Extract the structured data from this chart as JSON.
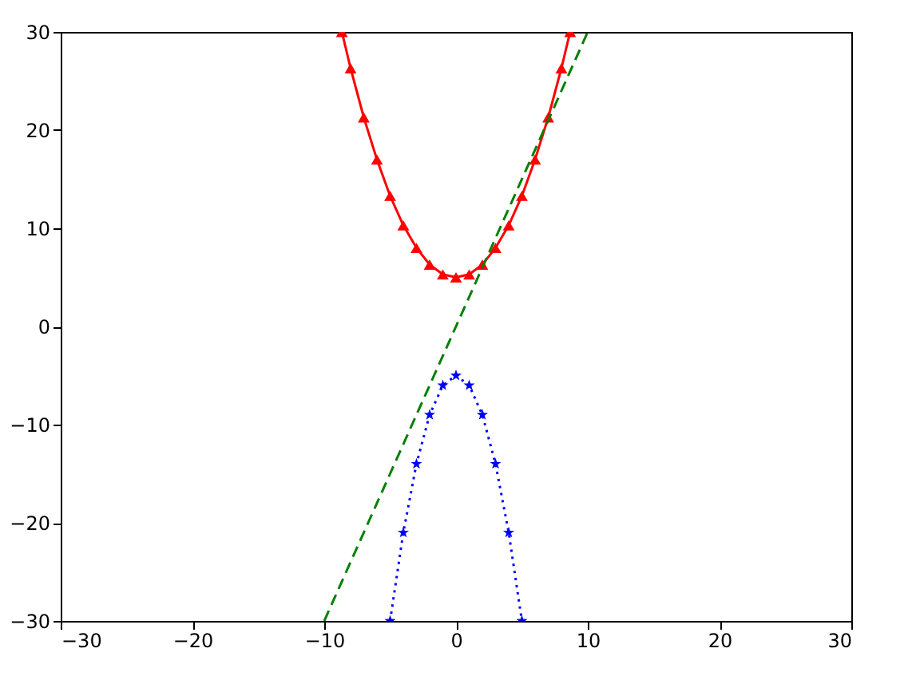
{
  "chart_data": {
    "type": "line",
    "xlim": [
      -30,
      30
    ],
    "ylim": [
      -30,
      30
    ],
    "xticks": [
      -30,
      -20,
      -10,
      0,
      10,
      20,
      30
    ],
    "yticks": [
      -30,
      -20,
      -10,
      0,
      10,
      20,
      30
    ],
    "grid": false,
    "series": [
      {
        "color": "#ff0000",
        "marker": "triangle",
        "line_style": "solid",
        "x": [
          -8.66,
          -8,
          -7,
          -6,
          -5,
          -4,
          -3,
          -2,
          -1,
          0,
          1,
          2,
          3,
          4,
          5,
          6,
          7,
          8,
          8.66
        ],
        "values": [
          30,
          26.3,
          21.3,
          17,
          13.3,
          10.3,
          8,
          6.3,
          5.3,
          5,
          5.3,
          6.3,
          8,
          10.3,
          13.3,
          17,
          21.3,
          26.3,
          30
        ]
      },
      {
        "color": "#0000ff",
        "marker": "star",
        "line_style": "dotted",
        "x": [
          -5,
          -4,
          -3,
          -2,
          -1,
          0,
          1,
          2,
          3,
          4,
          5
        ],
        "values": [
          -30,
          -21,
          -14,
          -9,
          -6,
          -5,
          -6,
          -9,
          -14,
          -21,
          -30
        ]
      },
      {
        "color": "#008000",
        "marker": "none",
        "line_style": "dashed",
        "x": [
          -10,
          10
        ],
        "values": [
          -30,
          30
        ]
      }
    ]
  }
}
